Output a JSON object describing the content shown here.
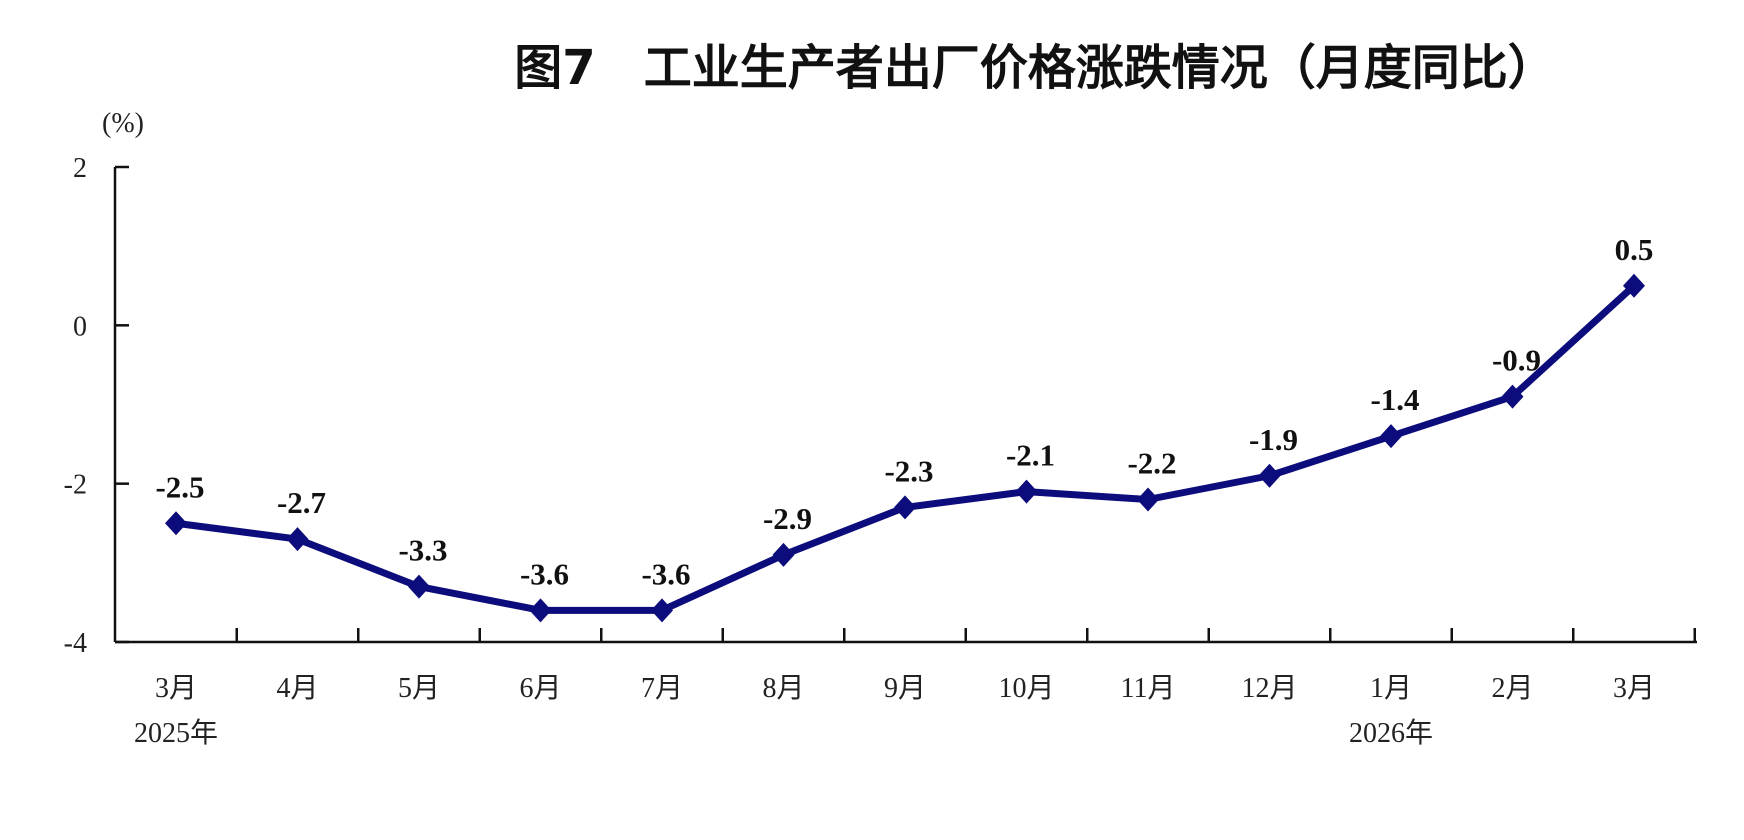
{
  "chart_data": {
    "type": "line",
    "title": "图7　工业生产者出厂价格涨跌情况（月度同比）",
    "ylabel": "(%)",
    "xlabel": "",
    "categories": [
      "3月",
      "4月",
      "5月",
      "6月",
      "7月",
      "8月",
      "9月",
      "10月",
      "11月",
      "12月",
      "1月",
      "2月",
      "3月"
    ],
    "year_labels": [
      {
        "index": 0,
        "label": "2025年"
      },
      {
        "index": 10,
        "label": "2026年"
      }
    ],
    "series": [
      {
        "values": [
          -2.5,
          -2.7,
          -3.3,
          -3.6,
          -3.6,
          -2.9,
          -2.3,
          -2.1,
          -2.2,
          -1.9,
          -1.4,
          -0.9,
          0.5
        ],
        "data_labels": [
          "-2.5",
          "-2.7",
          "-3.3",
          "-3.6",
          "-3.6",
          "-2.9",
          "-2.3",
          "-2.1",
          "-2.2",
          "-1.9",
          "-1.4",
          "-0.9",
          "0.5"
        ],
        "color": "#0c0c7c",
        "marker": "diamond"
      }
    ],
    "ylim": [
      -4,
      2
    ],
    "yticks": [
      "2",
      "0",
      "-2",
      "-4"
    ],
    "ytick_values": [
      2,
      0,
      -2,
      -4
    ],
    "grid": false,
    "legend": "none"
  }
}
